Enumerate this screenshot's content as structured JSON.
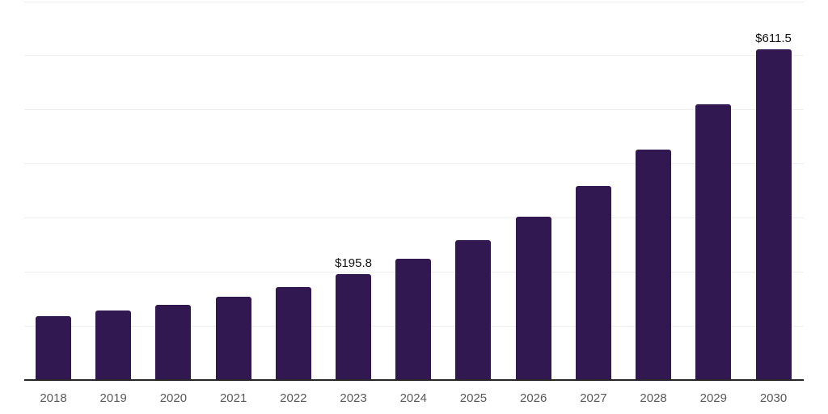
{
  "chart_data": {
    "type": "bar",
    "title": "",
    "xlabel": "",
    "ylabel": "",
    "categories": [
      "2018",
      "2019",
      "2020",
      "2021",
      "2022",
      "2023",
      "2024",
      "2025",
      "2026",
      "2027",
      "2028",
      "2029",
      "2030"
    ],
    "values": [
      118,
      129,
      138.5,
      154,
      172,
      195.8,
      224,
      259,
      302,
      359,
      426,
      510,
      611.5
    ],
    "value_labels": {
      "2023": "$195.8",
      "2030": "$611.5"
    },
    "ylim": [
      0,
      700
    ],
    "gridline_interval": 100,
    "grid": "horizontal-only",
    "legend": "none",
    "colors": {
      "bar": "#321850",
      "gridline": "#efefef",
      "axis_line": "#262626",
      "tick_label": "#595959",
      "value_label": "#111111",
      "background": "#ffffff"
    }
  }
}
